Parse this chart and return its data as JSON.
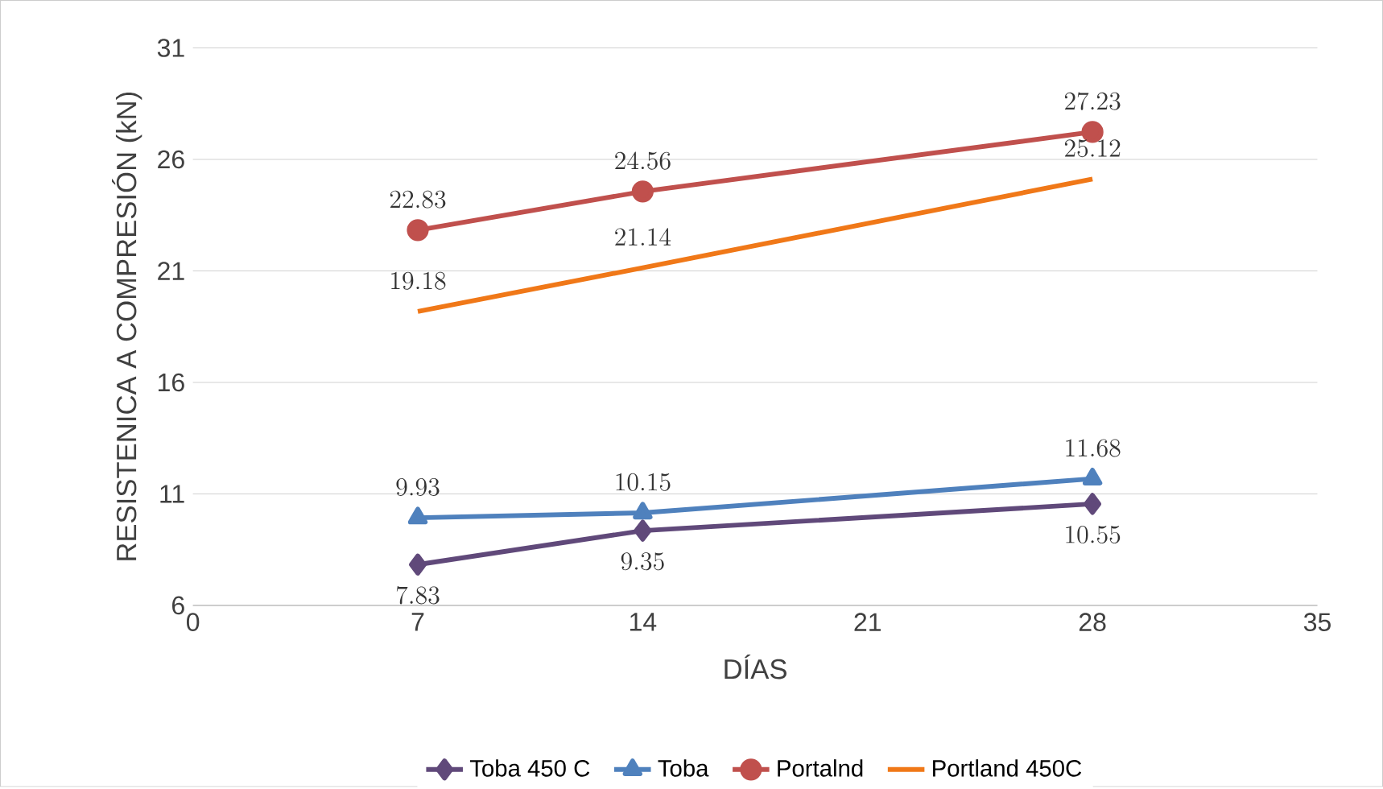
{
  "chart_data": {
    "type": "line",
    "xlabel": "DÍAS",
    "ylabel": "RESISTENICA A COMPRESIÓN (kN)",
    "x": [
      7,
      14,
      28
    ],
    "series": [
      {
        "name": "Toba 450 C",
        "color": "#60497a",
        "marker": "diamond",
        "values": [
          7.83,
          9.35,
          10.55
        ]
      },
      {
        "name": "Toba",
        "color": "#4f81bd",
        "marker": "triangle",
        "values": [
          9.93,
          10.15,
          11.68
        ]
      },
      {
        "name": "Portalnd",
        "color": "#c0504d",
        "marker": "circle",
        "values": [
          22.83,
          24.56,
          27.23
        ]
      },
      {
        "name": "Portland 450C",
        "color": "#f07818",
        "marker": "none",
        "values": [
          19.18,
          21.14,
          25.12
        ]
      }
    ],
    "xlim": [
      0,
      35
    ],
    "xticks": [
      0,
      7,
      14,
      21,
      28,
      35
    ],
    "ylim": [
      6,
      31
    ],
    "yticks": [
      6,
      11,
      16,
      21,
      26,
      31
    ],
    "grid": "y",
    "legend": "bottom",
    "data_labels": true
  }
}
